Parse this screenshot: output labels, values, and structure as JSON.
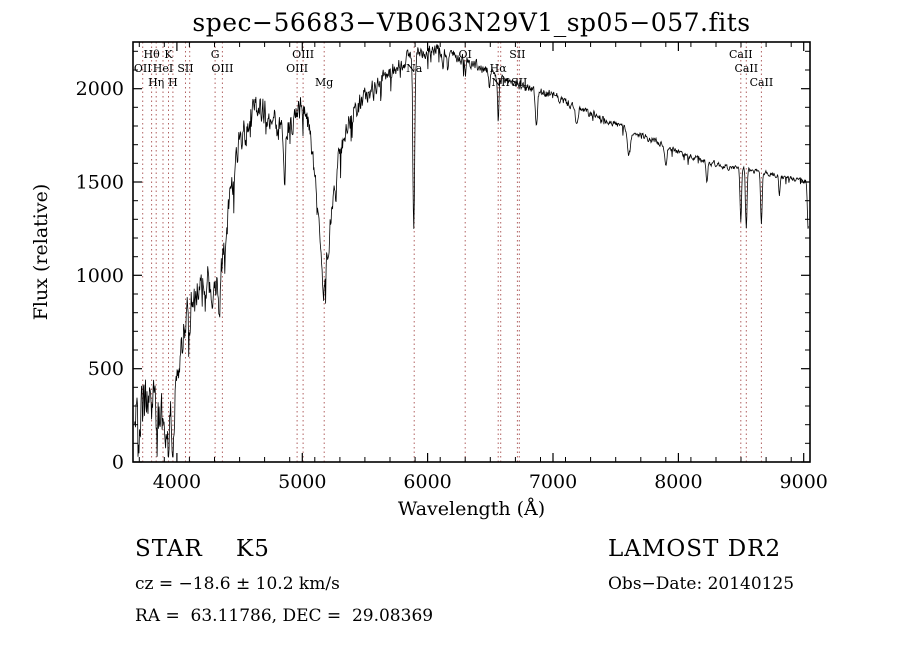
{
  "chart_data": {
    "type": "line",
    "title": "spec−56683−VB063N29V1_sp05−057.fits",
    "xlabel": "Wavelength (Å)",
    "ylabel": "Flux (relative)",
    "xlim": [
      3650,
      9050
    ],
    "ylim": [
      0,
      2250
    ],
    "x_ticks": [
      4000,
      5000,
      6000,
      7000,
      8000,
      9000
    ],
    "y_ticks": [
      0,
      500,
      1000,
      1500,
      2000
    ],
    "x_minor_step": 200,
    "y_minor_step": 100,
    "grid": false,
    "line_color": "#000000",
    "marker_color": "#b06060",
    "marker_label_color": "#8b2020",
    "series": [
      {
        "name": "spectrum",
        "anchors": [
          [
            3660,
            200
          ],
          [
            3680,
            280
          ],
          [
            3695,
            150
          ],
          [
            3715,
            250
          ],
          [
            3735,
            300
          ],
          [
            3760,
            340
          ],
          [
            3785,
            420
          ],
          [
            3805,
            390
          ],
          [
            3830,
            310
          ],
          [
            3855,
            260
          ],
          [
            3880,
            240
          ],
          [
            3905,
            215
          ],
          [
            3930,
            185
          ],
          [
            3950,
            230
          ],
          [
            3970,
            270
          ],
          [
            3995,
            400
          ],
          [
            4020,
            540
          ],
          [
            4045,
            650
          ],
          [
            4070,
            750
          ],
          [
            4095,
            810
          ],
          [
            4125,
            890
          ],
          [
            4160,
            930
          ],
          [
            4200,
            960
          ],
          [
            4240,
            985
          ],
          [
            4275,
            950
          ],
          [
            4305,
            905
          ],
          [
            4335,
            975
          ],
          [
            4365,
            1090
          ],
          [
            4400,
            1290
          ],
          [
            4450,
            1540
          ],
          [
            4500,
            1700
          ],
          [
            4550,
            1810
          ],
          [
            4600,
            1880
          ],
          [
            4650,
            1905
          ],
          [
            4700,
            1880
          ],
          [
            4750,
            1835
          ],
          [
            4800,
            1785
          ],
          [
            4860,
            1740
          ],
          [
            4905,
            1840
          ],
          [
            4950,
            1900
          ],
          [
            5000,
            1885
          ],
          [
            5050,
            1820
          ],
          [
            5100,
            1550
          ],
          [
            5140,
            1150
          ],
          [
            5170,
            945
          ],
          [
            5205,
            1140
          ],
          [
            5250,
            1450
          ],
          [
            5300,
            1660
          ],
          [
            5350,
            1790
          ],
          [
            5400,
            1875
          ],
          [
            5500,
            1950
          ],
          [
            5600,
            2015
          ],
          [
            5700,
            2085
          ],
          [
            5800,
            2145
          ],
          [
            5880,
            2185
          ],
          [
            5960,
            2195
          ],
          [
            6060,
            2215
          ],
          [
            6160,
            2195
          ],
          [
            6260,
            2165
          ],
          [
            6360,
            2135
          ],
          [
            6460,
            2095
          ],
          [
            6560,
            2060
          ],
          [
            6660,
            2040
          ],
          [
            6760,
            2015
          ],
          [
            6860,
            1990
          ],
          [
            6960,
            1970
          ],
          [
            7060,
            1945
          ],
          [
            7160,
            1905
          ],
          [
            7260,
            1875
          ],
          [
            7360,
            1850
          ],
          [
            7460,
            1822
          ],
          [
            7560,
            1795
          ],
          [
            7660,
            1765
          ],
          [
            7760,
            1735
          ],
          [
            7860,
            1705
          ],
          [
            7960,
            1672
          ],
          [
            8060,
            1645
          ],
          [
            8160,
            1622
          ],
          [
            8260,
            1602
          ],
          [
            8360,
            1585
          ],
          [
            8460,
            1572
          ],
          [
            8560,
            1562
          ],
          [
            8660,
            1552
          ],
          [
            8760,
            1540
          ],
          [
            8860,
            1522
          ],
          [
            8960,
            1508
          ],
          [
            9045,
            1500
          ]
        ]
      }
    ],
    "absorption_dips": [
      [
        3727,
        60,
        5
      ],
      [
        3770,
        70,
        4
      ],
      [
        3798,
        85,
        5
      ],
      [
        3835,
        70,
        4
      ],
      [
        3889,
        80,
        5
      ],
      [
        3933,
        120,
        6
      ],
      [
        3968,
        110,
        6
      ],
      [
        4101,
        160,
        7
      ],
      [
        4227,
        130,
        5
      ],
      [
        4340,
        160,
        6
      ],
      [
        4383,
        130,
        5
      ],
      [
        4455,
        110,
        5
      ],
      [
        4550,
        90,
        5
      ],
      [
        4861,
        190,
        6
      ],
      [
        4920,
        90,
        5
      ],
      [
        5270,
        90,
        6
      ],
      [
        5890,
        950,
        7
      ],
      [
        6122,
        85,
        5
      ],
      [
        6162,
        85,
        5
      ],
      [
        6300,
        95,
        5
      ],
      [
        6495,
        80,
        5
      ],
      [
        6563,
        235,
        6
      ],
      [
        6867,
        190,
        8
      ],
      [
        7190,
        95,
        9
      ],
      [
        7605,
        145,
        13
      ],
      [
        7900,
        95,
        8
      ],
      [
        8227,
        95,
        6
      ],
      [
        8498,
        270,
        6
      ],
      [
        8542,
        325,
        6
      ],
      [
        8662,
        285,
        6
      ],
      [
        8805,
        105,
        5
      ],
      [
        9035,
        265,
        6
      ]
    ],
    "noise_profile": [
      [
        3660,
        165
      ],
      [
        3900,
        135
      ],
      [
        4100,
        105
      ],
      [
        4400,
        88
      ],
      [
        4800,
        78
      ],
      [
        5200,
        70
      ],
      [
        5600,
        52
      ],
      [
        5950,
        40
      ],
      [
        6300,
        32
      ],
      [
        6800,
        27
      ],
      [
        7300,
        22
      ],
      [
        7800,
        18
      ],
      [
        8300,
        16
      ],
      [
        8700,
        15
      ],
      [
        9045,
        14
      ]
    ],
    "spectral_lines": [
      {
        "label": "OII",
        "wavelength": 3727,
        "row": 2
      },
      {
        "label": "Hθ",
        "wavelength": 3798,
        "row": 1
      },
      {
        "label": "Hη",
        "wavelength": 3835,
        "row": 3
      },
      {
        "label": "HeI",
        "wavelength": 3889,
        "row": 2
      },
      {
        "label": "K",
        "wavelength": 3933,
        "row": 1
      },
      {
        "label": "H",
        "wavelength": 3968,
        "row": 3
      },
      {
        "label": "SII",
        "wavelength": 4069,
        "row": 2
      },
      {
        "label": "",
        "wavelength": 4102,
        "row": 1
      },
      {
        "label": "G",
        "wavelength": 4305,
        "row": 1
      },
      {
        "label": "OIII",
        "wavelength": 4363,
        "row": 2
      },
      {
        "label": "OIII",
        "wavelength": 4959,
        "row": 2
      },
      {
        "label": "OIII",
        "wavelength": 5007,
        "row": 1
      },
      {
        "label": "Mg",
        "wavelength": 5175,
        "row": 3
      },
      {
        "label": "Na",
        "wavelength": 5893,
        "row": 2
      },
      {
        "label": "OI",
        "wavelength": 6300,
        "row": 1
      },
      {
        "label": "Hα",
        "wavelength": 6563,
        "row": 2
      },
      {
        "label": "NII",
        "wavelength": 6583,
        "row": 3
      },
      {
        "label": "SII",
        "wavelength": 6716,
        "row": 1
      },
      {
        "label": "SII",
        "wavelength": 6731,
        "row": 3
      },
      {
        "label": "CaII",
        "wavelength": 8498,
        "row": 1
      },
      {
        "label": "CaII",
        "wavelength": 8542,
        "row": 2
      },
      {
        "label": "CaII",
        "wavelength": 8662,
        "row": 3
      }
    ]
  },
  "footer": {
    "classification": "STAR    K5",
    "survey": "LAMOST DR2",
    "cz": "cz = −18.6 ± 10.2 km/s",
    "obs_date": "Obs−Date: 20140125",
    "coords": "RA =  63.11786, DEC =  29.08369"
  }
}
